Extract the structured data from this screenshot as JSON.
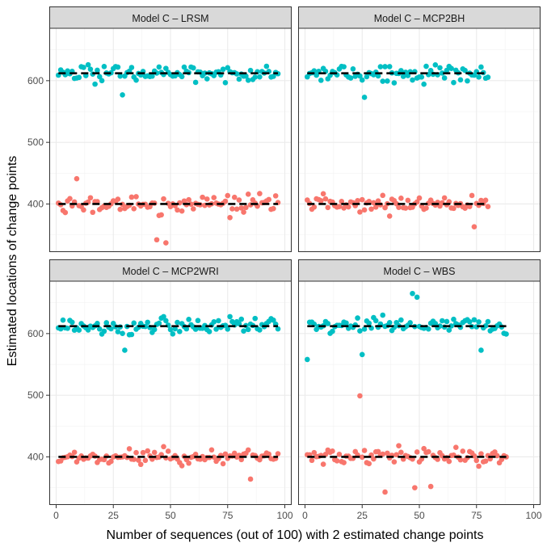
{
  "chart_data": {
    "type": "scatter",
    "xlabel": "Number of sequences (out of 100) with 2 estimated change points",
    "ylabel": "Estimated locations of change points",
    "xlim": [
      -3,
      103
    ],
    "ylim": [
      322,
      685
    ],
    "x_ticks": [
      0,
      25,
      50,
      75,
      100
    ],
    "y_ticks": [
      400,
      500,
      600
    ],
    "grid": true,
    "true_change_points": [
      400,
      612
    ],
    "colors": {
      "lower": "#F8766D",
      "upper": "#00BFC4",
      "reference_line": "#000000",
      "strip": "#d9d9d9"
    },
    "panels": [
      {
        "title": "Model C – LRSM",
        "n": 97,
        "hline_x": [
          1,
          97
        ],
        "outliers_lower": [
          [
            9,
            441
          ],
          [
            44,
            342
          ],
          [
            48,
            337
          ]
        ],
        "outliers_upper": [
          [
            29,
            577
          ]
        ]
      },
      {
        "title": "Model C – MCP2BH",
        "n": 80,
        "hline_x": [
          1,
          80
        ],
        "outliers_lower": [
          [
            74,
            363
          ]
        ],
        "outliers_upper": [
          [
            26,
            573
          ]
        ]
      },
      {
        "title": "Model C – MCP2WRI",
        "n": 97,
        "hline_x": [
          1,
          97
        ],
        "outliers_lower": [
          [
            85,
            364
          ]
        ],
        "outliers_upper": [
          [
            30,
            573
          ]
        ]
      },
      {
        "title": "Model C – WBS",
        "n": 88,
        "hline_x": [
          1,
          88
        ],
        "outliers_lower": [
          [
            24,
            499
          ],
          [
            35,
            343
          ],
          [
            48,
            350
          ],
          [
            55,
            352
          ]
        ],
        "outliers_upper": [
          [
            1,
            558
          ],
          [
            25,
            566
          ],
          [
            47,
            665
          ],
          [
            49,
            659
          ],
          [
            77,
            573
          ]
        ]
      }
    ]
  }
}
